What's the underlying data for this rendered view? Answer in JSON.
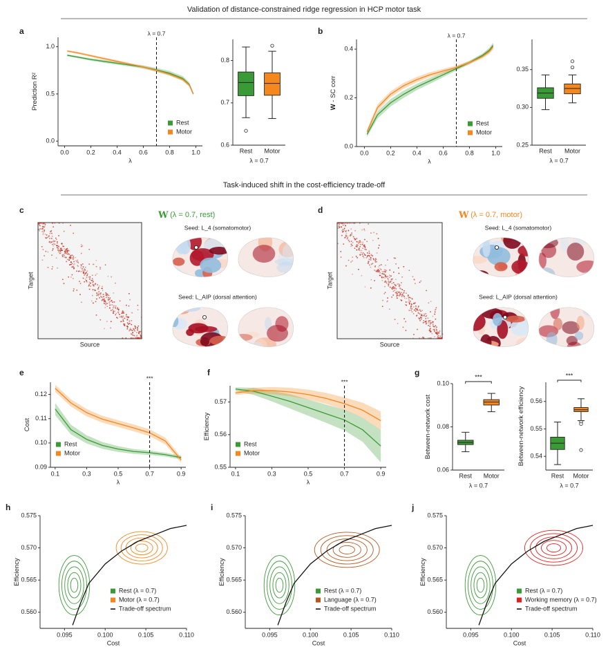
{
  "figure": {
    "headings": [
      "Validation of distance-constrained ridge regression in HCP motor task",
      "Task-induced shift in the cost-efficiency trade-off"
    ]
  },
  "chart_data": [
    {
      "type": "line",
      "panel": "a",
      "xlabel": "λ",
      "ylabel": "Prediction R²",
      "legend": "lower right",
      "x": [
        0.02,
        0.1,
        0.2,
        0.3,
        0.4,
        0.5,
        0.6,
        0.7,
        0.8,
        0.9,
        0.95,
        0.98
      ],
      "xlim": [
        -0.05,
        1.05
      ],
      "xticks": [
        {
          "value": 0,
          "label": "0.0"
        },
        0.2,
        0.4,
        0.6,
        0.8,
        {
          "value": 1,
          "label": "1.0"
        }
      ],
      "ylim": [
        -0.05,
        1.1
      ],
      "yticks": [
        {
          "value": 0,
          "label": "0.0"
        },
        0.5,
        {
          "value": 1,
          "label": "1.0"
        }
      ],
      "vline": {
        "x": 0.7,
        "label": "λ = 0.7"
      },
      "series": [
        {
          "name": "Rest",
          "color": "#3a9a35",
          "values": [
            0.91,
            0.89,
            0.865,
            0.845,
            0.825,
            0.805,
            0.785,
            0.755,
            0.72,
            0.665,
            0.6,
            0.5
          ],
          "lower": [
            0.9,
            0.878,
            0.852,
            0.83,
            0.81,
            0.79,
            0.768,
            0.735,
            0.695,
            0.64,
            0.578,
            0.485
          ],
          "upper": [
            0.92,
            0.902,
            0.878,
            0.86,
            0.84,
            0.82,
            0.802,
            0.775,
            0.745,
            0.69,
            0.622,
            0.515
          ]
        },
        {
          "name": "Motor",
          "color": "#f5871f",
          "values": [
            0.955,
            0.935,
            0.905,
            0.875,
            0.845,
            0.815,
            0.785,
            0.75,
            0.71,
            0.655,
            0.595,
            0.5
          ],
          "lower": [
            0.945,
            0.924,
            0.893,
            0.862,
            0.832,
            0.802,
            0.772,
            0.736,
            0.694,
            0.638,
            0.578,
            0.488
          ],
          "upper": [
            0.965,
            0.946,
            0.917,
            0.888,
            0.858,
            0.828,
            0.798,
            0.764,
            0.726,
            0.672,
            0.612,
            0.512
          ]
        }
      ]
    },
    {
      "type": "box",
      "xlabel": "λ = 0.7",
      "categories": [
        "Rest",
        "Motor"
      ],
      "ylim": [
        0.6,
        0.85
      ],
      "yticks": [
        0.6,
        0.7,
        0.8
      ],
      "boxes": [
        {
          "color": "#3a9a35",
          "whislo": 0.665,
          "q1": 0.717,
          "med": 0.748,
          "q3": 0.773,
          "whishi": 0.832,
          "fliers": [
            0.634
          ]
        },
        {
          "color": "#f5871f",
          "whislo": 0.663,
          "q1": 0.718,
          "med": 0.746,
          "q3": 0.771,
          "whishi": 0.822,
          "fliers": [
            0.835
          ]
        }
      ]
    },
    {
      "type": "line",
      "panel": "b",
      "xlabel": "λ",
      "ylabel_symbol": "W",
      "ylabel": "- SC corr",
      "legend": "lower right",
      "x": [
        0.02,
        0.1,
        0.2,
        0.3,
        0.4,
        0.5,
        0.6,
        0.7,
        0.8,
        0.9,
        0.95,
        0.98
      ],
      "xlim": [
        -0.06,
        1.05
      ],
      "xticks": [
        {
          "value": 0,
          "label": "0.0"
        },
        0.2,
        0.4,
        0.6,
        0.8,
        {
          "value": 1,
          "label": "1.0"
        }
      ],
      "ylim": [
        0,
        0.44
      ],
      "yticks": [
        {
          "value": 0,
          "label": "0.0"
        },
        0.2,
        0.4
      ],
      "vline": {
        "x": 0.7,
        "label": "λ = 0.7"
      },
      "series": [
        {
          "name": "Rest",
          "color": "#3a9a35",
          "values": [
            0.05,
            0.13,
            0.18,
            0.215,
            0.245,
            0.27,
            0.295,
            0.32,
            0.345,
            0.375,
            0.395,
            0.415
          ],
          "lower": [
            0.04,
            0.115,
            0.165,
            0.2,
            0.232,
            0.258,
            0.285,
            0.312,
            0.338,
            0.367,
            0.385,
            0.403
          ],
          "upper": [
            0.06,
            0.145,
            0.195,
            0.23,
            0.258,
            0.282,
            0.305,
            0.328,
            0.352,
            0.383,
            0.405,
            0.427
          ]
        },
        {
          "name": "Motor",
          "color": "#f5871f",
          "values": [
            0.06,
            0.16,
            0.215,
            0.25,
            0.275,
            0.295,
            0.31,
            0.325,
            0.345,
            0.37,
            0.39,
            0.41
          ],
          "lower": [
            0.05,
            0.147,
            0.203,
            0.238,
            0.264,
            0.285,
            0.301,
            0.317,
            0.338,
            0.362,
            0.38,
            0.398
          ],
          "upper": [
            0.07,
            0.173,
            0.227,
            0.262,
            0.286,
            0.305,
            0.319,
            0.333,
            0.352,
            0.378,
            0.4,
            0.422
          ]
        }
      ]
    },
    {
      "type": "box",
      "xlabel": "λ = 0.7",
      "categories": [
        "Rest",
        "Motor"
      ],
      "ylim": [
        0.25,
        0.39
      ],
      "yticks": [
        0.25,
        {
          "value": 0.3,
          "label": "0.30"
        },
        0.35
      ],
      "boxes": [
        {
          "color": "#3a9a35",
          "whislo": 0.297,
          "q1": 0.312,
          "med": 0.319,
          "q3": 0.326,
          "whishi": 0.343
        },
        {
          "color": "#f5871f",
          "whislo": 0.306,
          "q1": 0.318,
          "med": 0.325,
          "q3": 0.331,
          "whishi": 0.343,
          "fliers": [
            0.353,
            0.361
          ]
        }
      ]
    },
    {
      "type": "matrix",
      "panel": "c",
      "title_symbol": "W",
      "title": "(λ = 0.7, rest)",
      "color": "#3a9a35",
      "xlabel": "Source",
      "ylabel": "Target",
      "seeds": [
        "Seed: L_4 (somatomotor)",
        "Seed: L_AIP (dorsal attention)"
      ]
    },
    {
      "type": "matrix",
      "panel": "d",
      "title_symbol": "W",
      "title": "(λ = 0.7, motor)",
      "color": "#f5871f",
      "xlabel": "Source",
      "ylabel": "Target",
      "seeds": [
        "Seed: L_4 (somatomotor)",
        "Seed: L_AIP (dorsal attention)"
      ]
    },
    {
      "type": "line",
      "panel": "e",
      "xlabel": "λ",
      "ylabel": "Cost",
      "legend": "lower left",
      "x": [
        0.1,
        0.2,
        0.3,
        0.4,
        0.5,
        0.6,
        0.7,
        0.8,
        0.9
      ],
      "xlim": [
        0.07,
        0.93
      ],
      "xticks": [
        0.1,
        0.3,
        0.5,
        0.7,
        0.9
      ],
      "ylim": [
        0.09,
        0.125
      ],
      "yticks": [
        0.09,
        {
          "value": 0.1,
          "label": "0.10"
        },
        0.11,
        0.12
      ],
      "vline": {
        "x": 0.7,
        "label": "***"
      },
      "series": [
        {
          "name": "Rest",
          "color": "#3a9a35",
          "values": [
            0.114,
            0.1055,
            0.1015,
            0.099,
            0.0975,
            0.0965,
            0.096,
            0.0952,
            0.094
          ],
          "lower": [
            0.1115,
            0.1035,
            0.0998,
            0.0976,
            0.0963,
            0.0955,
            0.0951,
            0.0944,
            0.0933
          ],
          "upper": [
            0.1165,
            0.1075,
            0.1032,
            0.1004,
            0.0987,
            0.0975,
            0.0969,
            0.096,
            0.0947
          ]
        },
        {
          "name": "Motor",
          "color": "#f5871f",
          "values": [
            0.1225,
            0.1165,
            0.1125,
            0.1098,
            0.108,
            0.1062,
            0.1042,
            0.1008,
            0.093
          ],
          "lower": [
            0.121,
            0.115,
            0.111,
            0.1084,
            0.1066,
            0.1048,
            0.1028,
            0.0994,
            0.0918
          ],
          "upper": [
            0.124,
            0.118,
            0.114,
            0.1112,
            0.1094,
            0.1076,
            0.1056,
            0.1022,
            0.0942
          ]
        }
      ]
    },
    {
      "type": "line",
      "panel": "f",
      "xlabel": "λ",
      "ylabel": "Efficiency",
      "legend": "lower left",
      "x": [
        0.1,
        0.2,
        0.3,
        0.4,
        0.5,
        0.6,
        0.7,
        0.8,
        0.9
      ],
      "xlim": [
        0.07,
        0.93
      ],
      "xticks": [
        0.1,
        0.3,
        0.5,
        0.7,
        0.9
      ],
      "ylim": [
        0.55,
        0.575
      ],
      "yticks": [
        0.55,
        0.56,
        0.57
      ],
      "vline": {
        "x": 0.7,
        "label": "***"
      },
      "series": [
        {
          "name": "Rest",
          "color": "#3a9a35",
          "values": [
            0.574,
            0.5733,
            0.5718,
            0.5702,
            0.5683,
            0.5664,
            0.5645,
            0.5615,
            0.5565
          ],
          "lower": [
            0.5735,
            0.5722,
            0.5702,
            0.568,
            0.5658,
            0.5636,
            0.5613,
            0.5578,
            0.5515
          ],
          "upper": [
            0.5745,
            0.5744,
            0.5734,
            0.5724,
            0.5708,
            0.5692,
            0.5677,
            0.5652,
            0.5615
          ]
        },
        {
          "name": "Motor",
          "color": "#f5871f",
          "values": [
            0.5728,
            0.5735,
            0.5735,
            0.5731,
            0.5723,
            0.5711,
            0.5695,
            0.5675,
            0.5643
          ],
          "lower": [
            0.5722,
            0.5726,
            0.5724,
            0.5718,
            0.5708,
            0.5694,
            0.5676,
            0.5652,
            0.5615
          ],
          "upper": [
            0.5734,
            0.5744,
            0.5746,
            0.5744,
            0.5738,
            0.5728,
            0.5714,
            0.5698,
            0.5671
          ]
        }
      ]
    },
    {
      "type": "box",
      "panel": "g",
      "xlabel": "λ = 0.7",
      "ylabel": "Between-network cost",
      "significance": "***",
      "categories": [
        "Rest",
        "Motor"
      ],
      "ylim": [
        0.06,
        0.1
      ],
      "yticks": [
        0.06,
        0.08,
        {
          "value": 0.1,
          "label": "0.10"
        }
      ],
      "boxes": [
        {
          "color": "#3a9a35",
          "whislo": 0.0685,
          "q1": 0.0718,
          "med": 0.0728,
          "q3": 0.0738,
          "whishi": 0.0775
        },
        {
          "color": "#f5871f",
          "whislo": 0.087,
          "q1": 0.0901,
          "med": 0.0915,
          "q3": 0.0926,
          "whishi": 0.0955
        }
      ]
    },
    {
      "type": "box",
      "xlabel": "λ = 0.7",
      "ylabel": "Between-network efficiency",
      "significance": "***",
      "categories": [
        "Rest",
        "Motor"
      ],
      "ylim": [
        0.535,
        0.567
      ],
      "yticks": [
        0.54,
        0.55,
        0.56
      ],
      "boxes": [
        {
          "color": "#3a9a35",
          "whislo": 0.537,
          "q1": 0.5425,
          "med": 0.5448,
          "q3": 0.547,
          "whishi": 0.5525
        },
        {
          "color": "#f5871f",
          "whislo": 0.553,
          "q1": 0.5563,
          "med": 0.557,
          "q3": 0.5578,
          "whishi": 0.561,
          "fliers": [
            0.5525,
            0.5518,
            0.5423
          ]
        }
      ]
    },
    {
      "type": "contour",
      "panel": "h",
      "xlabel": "Cost",
      "ylabel": "Efficiency",
      "legend": "lower right",
      "xlim": [
        0.092,
        0.11
      ],
      "xticks": [
        0.095,
        {
          "value": 0.1,
          "label": "0.100"
        },
        0.105,
        {
          "value": 0.11,
          "label": "0.110"
        }
      ],
      "ylim": [
        0.5575,
        0.575
      ],
      "yticks": [
        {
          "value": 0.56,
          "label": "0.560"
        },
        0.565,
        {
          "value": 0.57,
          "label": "0.570"
        },
        0.575
      ],
      "series": [
        {
          "name": "Rest (λ = 0.7)",
          "color": "#3a9a35",
          "mean": [
            0.0962,
            0.5642
          ],
          "sd": [
            0.0009,
            0.0022
          ]
        },
        {
          "name": "Motor (λ = 0.7)",
          "color": "#f5871f",
          "mean": [
            0.1045,
            0.57
          ],
          "sd": [
            0.0015,
            0.0012
          ]
        }
      ],
      "curve": {
        "name": "Trade-off spectrum",
        "x": [
          0.096,
          0.097,
          0.098,
          0.1,
          0.102,
          0.104,
          0.106,
          0.108,
          0.11
        ],
        "y": [
          0.558,
          0.5615,
          0.5645,
          0.5675,
          0.5695,
          0.571,
          0.572,
          0.573,
          0.5735
        ]
      }
    },
    {
      "type": "contour",
      "panel": "i",
      "xlabel": "Cost",
      "ylabel": "Efficiency",
      "legend": "lower right",
      "xlim": [
        0.092,
        0.11
      ],
      "xticks": [
        0.095,
        {
          "value": 0.1,
          "label": "0.100"
        },
        0.105,
        {
          "value": 0.11,
          "label": "0.110"
        }
      ],
      "ylim": [
        0.5575,
        0.575
      ],
      "yticks": [
        {
          "value": 0.56,
          "label": "0.560"
        },
        0.565,
        {
          "value": 0.57,
          "label": "0.570"
        },
        0.575
      ],
      "series": [
        {
          "name": "Rest (λ = 0.7)",
          "color": "#3a9a35",
          "mean": [
            0.0962,
            0.5642
          ],
          "sd": [
            0.0009,
            0.0022
          ]
        },
        {
          "name": "Language (λ = 0.7)",
          "color": "#b5561f",
          "mean": [
            0.1045,
            0.5697
          ],
          "sd": [
            0.0019,
            0.0013
          ]
        }
      ],
      "curve": {
        "name": "Trade-off spectrum",
        "x": [
          0.096,
          0.097,
          0.098,
          0.1,
          0.102,
          0.104,
          0.106,
          0.108,
          0.11
        ],
        "y": [
          0.558,
          0.5615,
          0.5645,
          0.5675,
          0.5695,
          0.571,
          0.572,
          0.573,
          0.5735
        ]
      }
    },
    {
      "type": "contour",
      "panel": "j",
      "xlabel": "Cost",
      "ylabel": "Efficiency",
      "legend": "lower right",
      "xlim": [
        0.092,
        0.11
      ],
      "xticks": [
        0.095,
        {
          "value": 0.1,
          "label": "0.100"
        },
        0.105,
        {
          "value": 0.11,
          "label": "0.110"
        }
      ],
      "ylim": [
        0.5575,
        0.575
      ],
      "yticks": [
        {
          "value": 0.56,
          "label": "0.560"
        },
        0.565,
        {
          "value": 0.57,
          "label": "0.570"
        },
        0.575
      ],
      "series": [
        {
          "name": "Rest (λ = 0.7)",
          "color": "#3a9a35",
          "mean": [
            0.0962,
            0.5642
          ],
          "sd": [
            0.0009,
            0.0022
          ]
        },
        {
          "name": "Working memory (λ = 0.7)",
          "color": "#e0201b",
          "mean": [
            0.1052,
            0.57
          ],
          "sd": [
            0.0017,
            0.0013
          ]
        }
      ],
      "curve": {
        "name": "Trade-off spectrum",
        "x": [
          0.096,
          0.097,
          0.098,
          0.1,
          0.102,
          0.104,
          0.106,
          0.108,
          0.11
        ],
        "y": [
          0.558,
          0.5615,
          0.5645,
          0.5675,
          0.5695,
          0.571,
          0.572,
          0.573,
          0.5735
        ]
      }
    }
  ]
}
